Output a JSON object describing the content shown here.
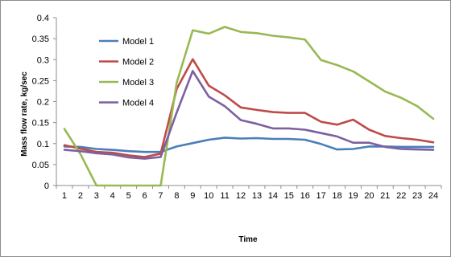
{
  "chart_data": {
    "type": "line",
    "title": "",
    "xlabel": "Time",
    "ylabel": "Mass flow rate, kg/sec",
    "x": [
      1,
      2,
      3,
      4,
      5,
      6,
      7,
      8,
      9,
      10,
      11,
      12,
      13,
      14,
      15,
      16,
      17,
      18,
      19,
      20,
      21,
      22,
      23,
      24
    ],
    "ylim": [
      0,
      0.4
    ],
    "yticks": [
      "0",
      "0.05",
      "0.1",
      "0.15",
      "0.2",
      "0.25",
      "0.3",
      "0.35",
      "0.4"
    ],
    "grid": false,
    "legend_position": "top-left",
    "series": [
      {
        "name": "Model 1",
        "color": "#4A7EBB",
        "values": [
          0.093,
          0.092,
          0.087,
          0.085,
          0.082,
          0.08,
          0.08,
          0.093,
          0.101,
          0.109,
          0.114,
          0.112,
          0.113,
          0.111,
          0.111,
          0.109,
          0.099,
          0.086,
          0.087,
          0.093,
          0.093,
          0.092,
          0.092,
          0.092
        ]
      },
      {
        "name": "Model 2",
        "color": "#BE4B48",
        "values": [
          0.096,
          0.088,
          0.08,
          0.078,
          0.072,
          0.068,
          0.076,
          0.23,
          0.301,
          0.238,
          0.215,
          0.186,
          0.18,
          0.175,
          0.173,
          0.173,
          0.152,
          0.145,
          0.157,
          0.133,
          0.118,
          0.113,
          0.109,
          0.103
        ]
      },
      {
        "name": "Model 3",
        "color": "#98B954",
        "values": [
          0.135,
          0.075,
          0,
          0,
          0,
          0,
          0,
          0.245,
          0.37,
          0.362,
          0.378,
          0.366,
          0.363,
          0.357,
          0.353,
          0.348,
          0.299,
          0.287,
          0.272,
          0.248,
          0.224,
          0.209,
          0.189,
          0.159
        ]
      },
      {
        "name": "Model 4",
        "color": "#7D60A0",
        "values": [
          0.085,
          0.082,
          0.077,
          0.074,
          0.067,
          0.064,
          0.068,
          0.174,
          0.273,
          0.212,
          0.189,
          0.156,
          0.147,
          0.136,
          0.136,
          0.133,
          0.125,
          0.117,
          0.102,
          0.102,
          0.092,
          0.087,
          0.086,
          0.085
        ]
      }
    ]
  }
}
